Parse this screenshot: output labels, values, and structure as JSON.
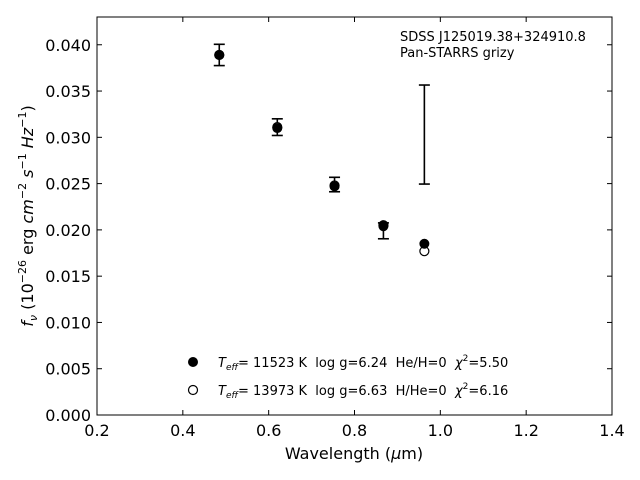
{
  "chart_data": {
    "type": "scatter",
    "annotation": [
      "SDSS J125019.38+324910.8",
      "Pan-STARRS grizy"
    ],
    "xlabel": {
      "pre": "Wavelength (",
      "greek": "μ",
      "post": "m)"
    },
    "ylabel": {
      "f": "f",
      "sub": "ν",
      "p1": " (10",
      "exp1": "−26",
      "p2": " erg ",
      "cm": "cm",
      "exp2": "−2",
      "s": " s",
      "exp3": "−1",
      "hz": " Hz",
      "exp4": "−1",
      "close": ")"
    },
    "xlim": [
      0.2,
      1.4
    ],
    "ylim": [
      0.0,
      0.043
    ],
    "xticks": [
      "0.2",
      "0.4",
      "0.6",
      "0.8",
      "1.0",
      "1.2",
      "1.4"
    ],
    "yticks": [
      "0.000",
      "0.005",
      "0.010",
      "0.015",
      "0.020",
      "0.025",
      "0.030",
      "0.035",
      "0.040"
    ],
    "grid": false,
    "legend_position": "bottom-center",
    "series": [
      {
        "name": "observed",
        "marker": "errorbar",
        "x": [
          0.4849,
          0.6201,
          0.7535,
          0.8674,
          0.9628
        ],
        "y": [
          0.0389,
          0.0311,
          0.0249,
          0.0199,
          0.0303
        ],
        "yerr": [
          0.00115,
          0.0009,
          0.00078,
          0.00086,
          0.00535
        ]
      },
      {
        "name": "model_He",
        "marker": "filled-circle",
        "x": [
          0.4849,
          0.6201,
          0.7535,
          0.8674,
          0.9628
        ],
        "y": [
          0.0389,
          0.031,
          0.0247,
          0.0204,
          0.0185
        ]
      },
      {
        "name": "model_H",
        "marker": "open-circle",
        "x": [
          0.4849,
          0.6201,
          0.7535,
          0.8674,
          0.9628
        ],
        "y": [
          0.0389,
          0.0311,
          0.0248,
          0.0205,
          0.0177
        ]
      }
    ],
    "legend": [
      {
        "t": "T",
        "sub": "eff",
        "mid": "= 11523 K  log g=6.24  He/H=0  ",
        "chi": "χ",
        "sup": "2",
        "end": "=5.50"
      },
      {
        "t": "T",
        "sub": "eff",
        "mid": "= 13973 K  log g=6.63  H/He=0  ",
        "chi": "χ",
        "sup": "2",
        "end": "=6.16"
      }
    ]
  }
}
